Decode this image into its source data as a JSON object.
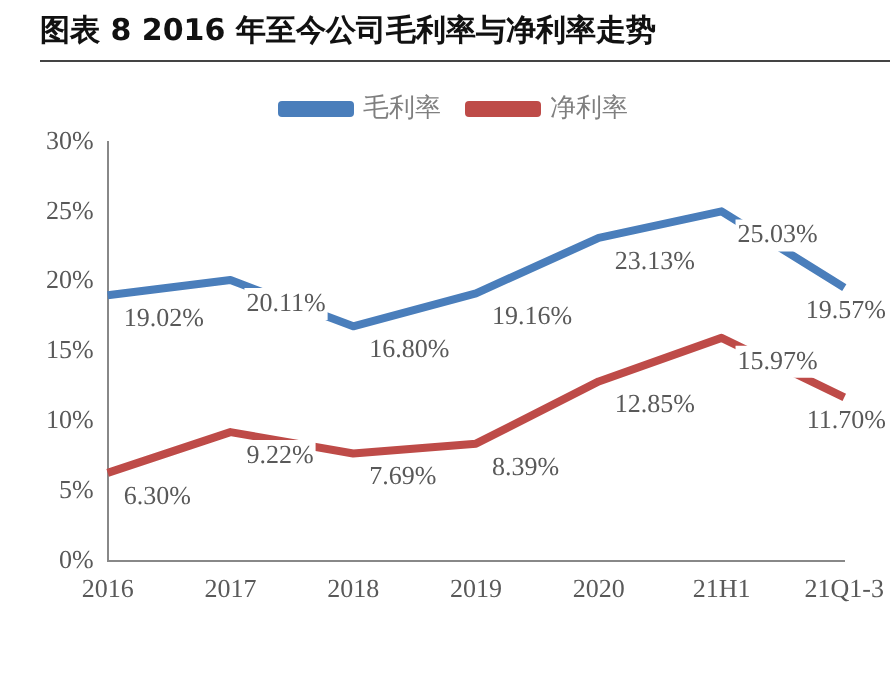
{
  "chart_data": {
    "type": "line",
    "title": "图表 8 2016 年至今公司毛利率与净利率走势",
    "categories": [
      "2016",
      "2017",
      "2018",
      "2019",
      "2020",
      "21H1",
      "21Q1-3"
    ],
    "series": [
      {
        "name": "毛利率",
        "color": "#4a7ebb",
        "values": [
          19.02,
          20.11,
          16.8,
          19.16,
          23.13,
          25.03,
          19.57
        ],
        "value_labels": [
          "19.02%",
          "20.11%",
          "16.80%",
          "19.16%",
          "23.13%",
          "25.03%",
          "19.57%"
        ]
      },
      {
        "name": "净利率",
        "color": "#be4b48",
        "values": [
          6.3,
          9.22,
          7.69,
          8.39,
          12.85,
          15.97,
          11.7
        ],
        "value_labels": [
          "6.30%",
          "9.22%",
          "7.69%",
          "8.39%",
          "12.85%",
          "15.97%",
          "11.70%"
        ]
      }
    ],
    "ylim": [
      0,
      30
    ],
    "yticks": [
      {
        "value": 0,
        "label": "0%"
      },
      {
        "value": 5,
        "label": "5%"
      },
      {
        "value": 10,
        "label": "10%"
      },
      {
        "value": 15,
        "label": "15%"
      },
      {
        "value": 20,
        "label": "20%"
      },
      {
        "value": 25,
        "label": "25%"
      },
      {
        "value": 30,
        "label": "30%"
      }
    ],
    "grid": false,
    "legend": "top",
    "marker": "none",
    "line_style": "solid"
  }
}
